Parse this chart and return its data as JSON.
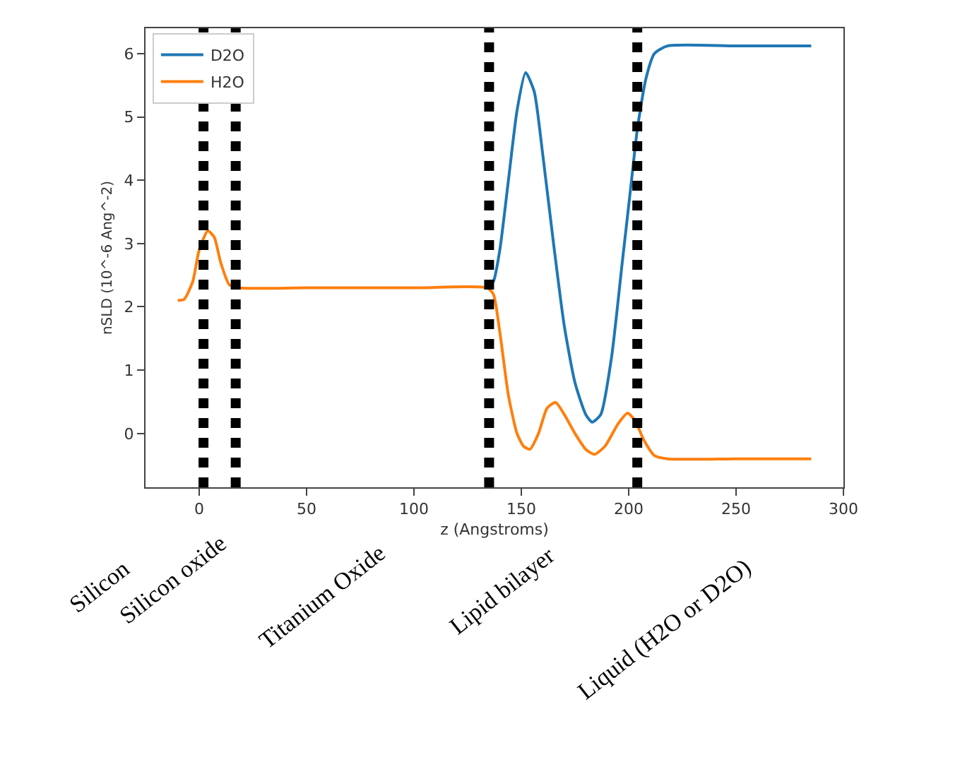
{
  "chart_data": {
    "type": "line",
    "xlabel": "z (Angstroms)",
    "ylabel": "nSLD (10^-6 Ang^-2)",
    "xlim": [
      -25,
      300
    ],
    "xticks": [
      0,
      50,
      100,
      150,
      200,
      250,
      300
    ],
    "ylim": [
      -0.85,
      6.4
    ],
    "yticks": [
      0,
      1,
      2,
      3,
      4,
      5,
      6
    ],
    "legend": "top left",
    "line_style": "solid",
    "marker": "none",
    "series": [
      {
        "name": "D2O",
        "color": "#1f77b4",
        "x": [
          134,
          137,
          140,
          144,
          148,
          152,
          156,
          160,
          165,
          170,
          175,
          180,
          183,
          187,
          192,
          197,
          201,
          204,
          208,
          212,
          218,
          250,
          285
        ],
        "values": [
          2.3,
          2.4,
          2.9,
          4.0,
          5.1,
          5.7,
          5.4,
          4.4,
          3.0,
          1.7,
          0.8,
          0.3,
          0.18,
          0.3,
          1.2,
          2.7,
          3.9,
          4.8,
          5.6,
          6.0,
          6.12,
          6.12,
          6.12
        ]
      },
      {
        "name": "H2O",
        "color": "#ff7f0e",
        "x": [
          -10,
          -7,
          -3,
          0,
          4,
          7,
          10,
          14,
          18,
          50,
          100,
          134,
          137,
          140,
          144,
          148,
          151,
          154,
          158,
          162,
          166,
          170,
          175,
          180,
          184,
          189,
          195,
          199.5,
          203,
          207,
          212,
          218,
          250,
          285
        ],
        "values": [
          2.1,
          2.12,
          2.4,
          2.9,
          3.2,
          3.1,
          2.7,
          2.35,
          2.3,
          2.3,
          2.3,
          2.3,
          2.2,
          1.6,
          0.6,
          0.0,
          -0.2,
          -0.25,
          0.0,
          0.4,
          0.49,
          0.3,
          0.0,
          -0.25,
          -0.33,
          -0.2,
          0.15,
          0.32,
          0.2,
          -0.1,
          -0.35,
          -0.4,
          -0.4,
          -0.4
        ]
      }
    ],
    "ref_lines": [
      {
        "axis": "x",
        "value": 2,
        "color": "#000000",
        "line_style": "dotted"
      },
      {
        "axis": "x",
        "value": 17,
        "color": "#000000",
        "line_style": "dotted"
      },
      {
        "axis": "x",
        "value": 135,
        "color": "#000000",
        "line_style": "dotted"
      },
      {
        "axis": "x",
        "value": 204,
        "color": "#000000",
        "line_style": "dotted"
      }
    ],
    "annotations": [
      "Silicon",
      "Silicon oxide",
      "Titanium Oxide",
      "Lipid bilayer",
      "Liquid (H2O or D2O)"
    ]
  }
}
